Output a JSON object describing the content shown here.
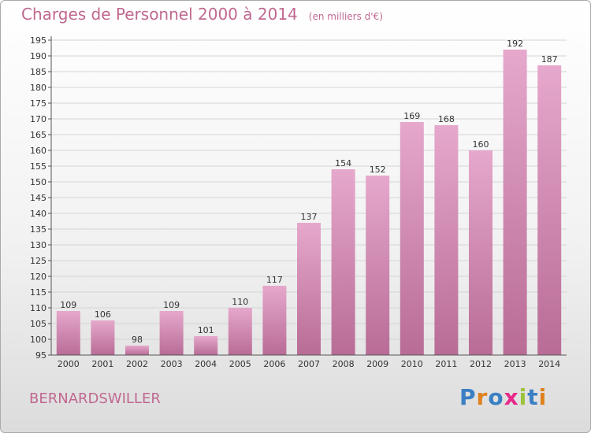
{
  "title": "Charges de Personnel 2000 à 2014",
  "subtitle": "(en milliers d'€)",
  "commune": "BERNARDSWILLER",
  "logo": {
    "letters": [
      "P",
      "r",
      "o",
      "x",
      "i",
      "t",
      "i"
    ],
    "colors": [
      "#3a7fc4",
      "#e0811f",
      "#3a7fc4",
      "#e7298a",
      "#9cc43a",
      "#3a7fc4",
      "#e0811f"
    ]
  },
  "colors": {
    "bar_top": "#e6a8cc",
    "bar_bottom": "#b86c96",
    "title": "#c06890",
    "grid": "#d4d4d4"
  },
  "chart_data": {
    "type": "bar",
    "title": "Charges de Personnel 2000 à 2014",
    "subtitle": "(en milliers d'€)",
    "categories": [
      "2000",
      "2001",
      "2002",
      "2003",
      "2004",
      "2005",
      "2006",
      "2007",
      "2008",
      "2009",
      "2010",
      "2011",
      "2012",
      "2013",
      "2014"
    ],
    "values": [
      109,
      106,
      98,
      109,
      101,
      110,
      117,
      137,
      154,
      152,
      169,
      168,
      160,
      192,
      187
    ],
    "ylim": [
      95,
      195
    ],
    "ytick_step": 5,
    "grid": true,
    "xlabel": "",
    "ylabel": ""
  }
}
